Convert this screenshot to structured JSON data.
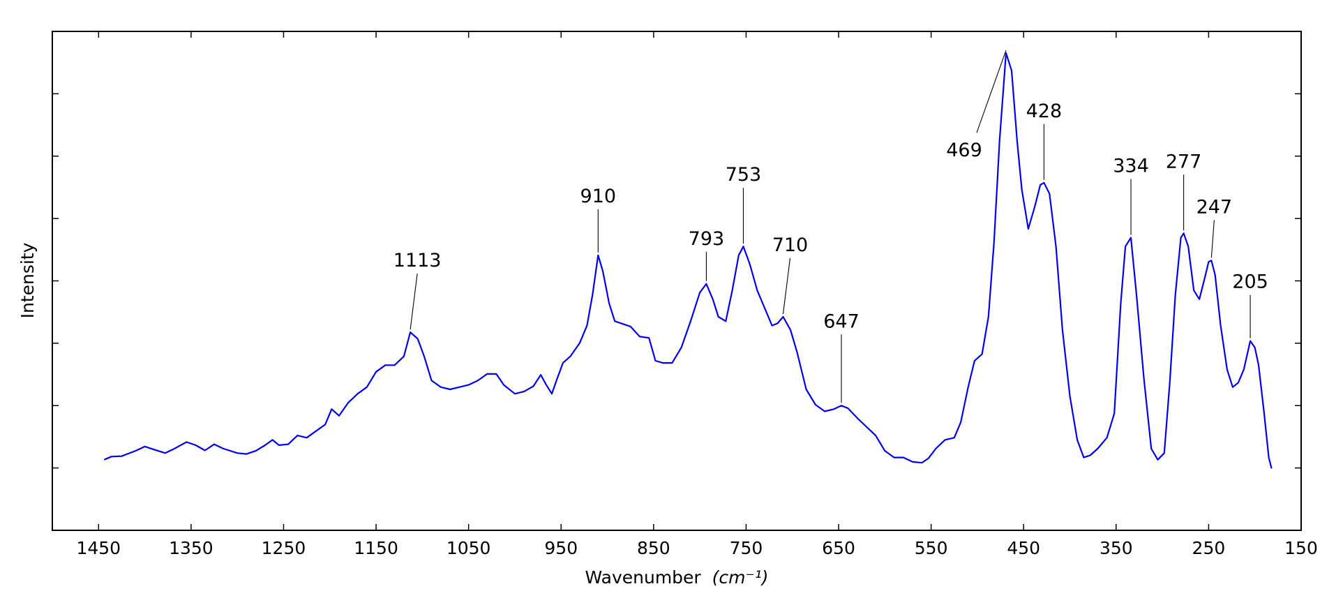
{
  "chart_data": {
    "type": "line",
    "xlabel": "Wavenumber",
    "xlabel_unit": "(cm⁻¹)",
    "ylabel": "Intensity",
    "x_reversed": true,
    "xlim": [
      1500,
      150
    ],
    "ylim": [
      0,
      1
    ],
    "x_ticks": [
      "1450",
      "1350",
      "1250",
      "1150",
      "1050",
      "950",
      "850",
      "750",
      "650",
      "550",
      "450",
      "350",
      "250",
      "150"
    ],
    "y_tick_count": 7,
    "grid": false,
    "line_color": "#0000ee",
    "series": [
      {
        "points": [
          [
            1444,
            0.075
          ],
          [
            1436,
            0.082
          ],
          [
            1425,
            0.083
          ],
          [
            1410,
            0.095
          ],
          [
            1400,
            0.105
          ],
          [
            1390,
            0.098
          ],
          [
            1378,
            0.09
          ],
          [
            1368,
            0.1
          ],
          [
            1355,
            0.115
          ],
          [
            1345,
            0.108
          ],
          [
            1335,
            0.096
          ],
          [
            1325,
            0.11
          ],
          [
            1315,
            0.1
          ],
          [
            1300,
            0.09
          ],
          [
            1290,
            0.088
          ],
          [
            1280,
            0.095
          ],
          [
            1270,
            0.108
          ],
          [
            1262,
            0.12
          ],
          [
            1255,
            0.108
          ],
          [
            1245,
            0.11
          ],
          [
            1235,
            0.13
          ],
          [
            1225,
            0.125
          ],
          [
            1215,
            0.14
          ],
          [
            1205,
            0.155
          ],
          [
            1198,
            0.19
          ],
          [
            1190,
            0.175
          ],
          [
            1180,
            0.205
          ],
          [
            1170,
            0.225
          ],
          [
            1160,
            0.24
          ],
          [
            1150,
            0.275
          ],
          [
            1140,
            0.29
          ],
          [
            1130,
            0.29
          ],
          [
            1120,
            0.31
          ],
          [
            1113,
            0.365
          ],
          [
            1105,
            0.35
          ],
          [
            1098,
            0.31
          ],
          [
            1090,
            0.255
          ],
          [
            1080,
            0.24
          ],
          [
            1070,
            0.235
          ],
          [
            1060,
            0.24
          ],
          [
            1050,
            0.245
          ],
          [
            1040,
            0.255
          ],
          [
            1030,
            0.27
          ],
          [
            1020,
            0.27
          ],
          [
            1012,
            0.245
          ],
          [
            1000,
            0.225
          ],
          [
            990,
            0.23
          ],
          [
            980,
            0.242
          ],
          [
            972,
            0.268
          ],
          [
            966,
            0.245
          ],
          [
            960,
            0.225
          ],
          [
            955,
            0.255
          ],
          [
            948,
            0.295
          ],
          [
            940,
            0.31
          ],
          [
            930,
            0.34
          ],
          [
            922,
            0.38
          ],
          [
            916,
            0.45
          ],
          [
            910,
            0.54
          ],
          [
            905,
            0.505
          ],
          [
            898,
            0.43
          ],
          [
            892,
            0.39
          ],
          [
            885,
            0.385
          ],
          [
            875,
            0.378
          ],
          [
            865,
            0.355
          ],
          [
            855,
            0.352
          ],
          [
            848,
            0.3
          ],
          [
            840,
            0.295
          ],
          [
            830,
            0.295
          ],
          [
            820,
            0.33
          ],
          [
            810,
            0.39
          ],
          [
            800,
            0.455
          ],
          [
            793,
            0.475
          ],
          [
            786,
            0.44
          ],
          [
            780,
            0.4
          ],
          [
            772,
            0.39
          ],
          [
            765,
            0.46
          ],
          [
            758,
            0.54
          ],
          [
            753,
            0.56
          ],
          [
            746,
            0.52
          ],
          [
            738,
            0.46
          ],
          [
            730,
            0.42
          ],
          [
            722,
            0.38
          ],
          [
            716,
            0.385
          ],
          [
            710,
            0.4
          ],
          [
            702,
            0.37
          ],
          [
            695,
            0.32
          ],
          [
            685,
            0.235
          ],
          [
            675,
            0.2
          ],
          [
            665,
            0.185
          ],
          [
            655,
            0.19
          ],
          [
            647,
            0.198
          ],
          [
            640,
            0.192
          ],
          [
            630,
            0.17
          ],
          [
            620,
            0.15
          ],
          [
            610,
            0.13
          ],
          [
            600,
            0.095
          ],
          [
            590,
            0.08
          ],
          [
            580,
            0.08
          ],
          [
            570,
            0.07
          ],
          [
            560,
            0.068
          ],
          [
            553,
            0.078
          ],
          [
            545,
            0.1
          ],
          [
            535,
            0.12
          ],
          [
            525,
            0.125
          ],
          [
            518,
            0.16
          ],
          [
            510,
            0.24
          ],
          [
            503,
            0.3
          ],
          [
            495,
            0.315
          ],
          [
            488,
            0.4
          ],
          [
            482,
            0.57
          ],
          [
            476,
            0.8
          ],
          [
            469,
            1.0
          ],
          [
            463,
            0.96
          ],
          [
            457,
            0.8
          ],
          [
            452,
            0.69
          ],
          [
            445,
            0.6
          ],
          [
            438,
            0.65
          ],
          [
            432,
            0.7
          ],
          [
            428,
            0.705
          ],
          [
            422,
            0.68
          ],
          [
            415,
            0.56
          ],
          [
            408,
            0.37
          ],
          [
            400,
            0.22
          ],
          [
            392,
            0.12
          ],
          [
            385,
            0.08
          ],
          [
            378,
            0.085
          ],
          [
            370,
            0.1
          ],
          [
            360,
            0.125
          ],
          [
            352,
            0.18
          ],
          [
            345,
            0.43
          ],
          [
            340,
            0.56
          ],
          [
            334,
            0.58
          ],
          [
            328,
            0.45
          ],
          [
            320,
            0.26
          ],
          [
            312,
            0.1
          ],
          [
            305,
            0.075
          ],
          [
            298,
            0.09
          ],
          [
            292,
            0.25
          ],
          [
            286,
            0.45
          ],
          [
            280,
            0.58
          ],
          [
            277,
            0.59
          ],
          [
            272,
            0.56
          ],
          [
            266,
            0.46
          ],
          [
            260,
            0.44
          ],
          [
            254,
            0.49
          ],
          [
            250,
            0.525
          ],
          [
            247,
            0.528
          ],
          [
            243,
            0.495
          ],
          [
            237,
            0.38
          ],
          [
            230,
            0.28
          ],
          [
            224,
            0.24
          ],
          [
            218,
            0.25
          ],
          [
            212,
            0.28
          ],
          [
            205,
            0.345
          ],
          [
            200,
            0.33
          ],
          [
            196,
            0.29
          ],
          [
            190,
            0.18
          ],
          [
            185,
            0.08
          ],
          [
            182,
            0.055
          ]
        ]
      }
    ],
    "peak_labels": [
      {
        "text": "1113",
        "x": 1113
      },
      {
        "text": "910",
        "x": 910
      },
      {
        "text": "793",
        "x": 793
      },
      {
        "text": "753",
        "x": 753
      },
      {
        "text": "710",
        "x": 710
      },
      {
        "text": "647",
        "x": 647
      },
      {
        "text": "469",
        "x": 469
      },
      {
        "text": "428",
        "x": 428
      },
      {
        "text": "334",
        "x": 334
      },
      {
        "text": "277",
        "x": 277
      },
      {
        "text": "247",
        "x": 247
      },
      {
        "text": "205",
        "x": 205
      }
    ]
  }
}
